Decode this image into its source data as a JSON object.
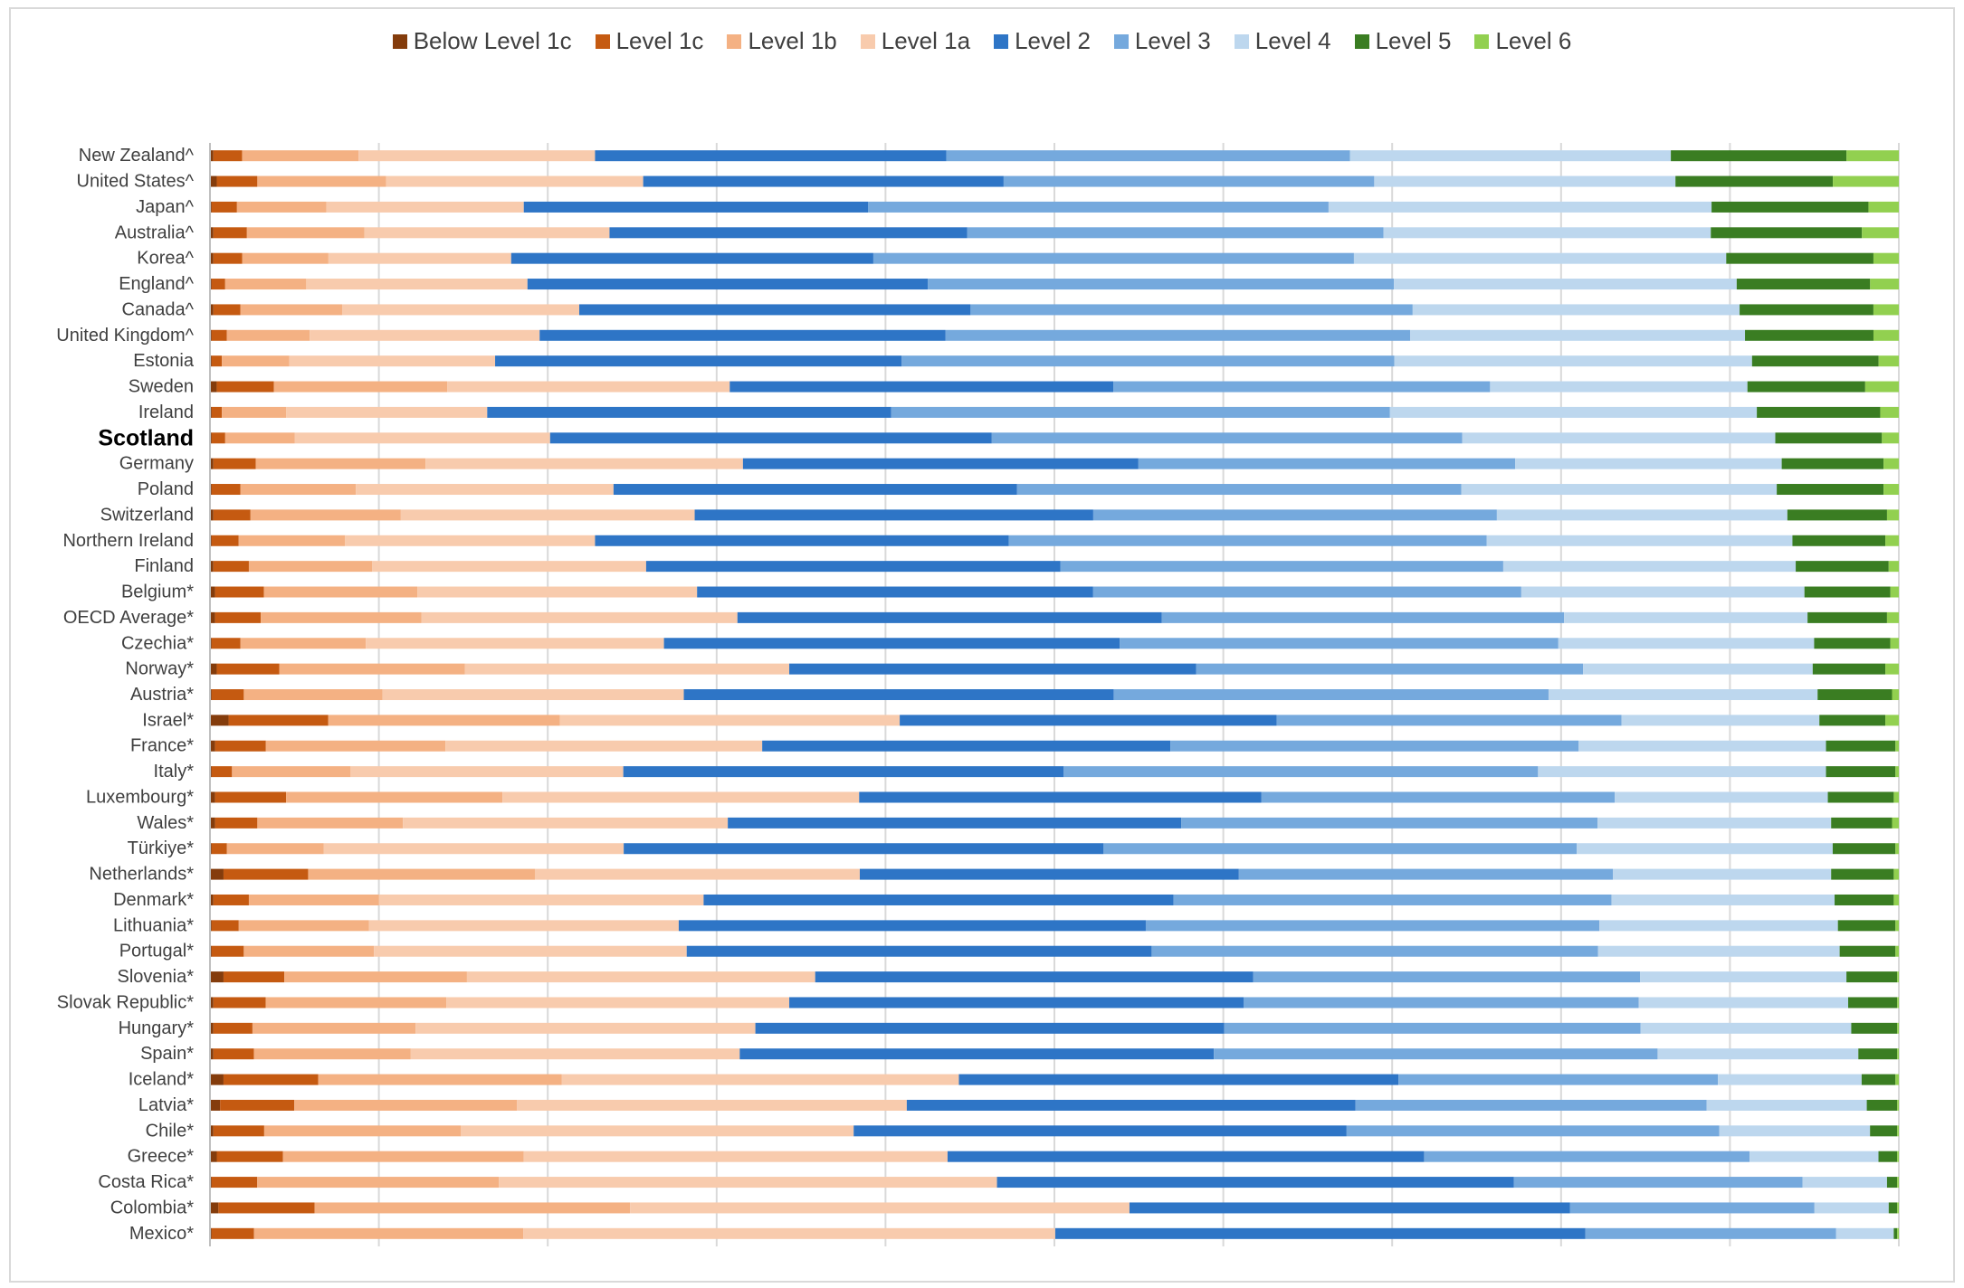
{
  "chart_data": {
    "type": "bar",
    "orientation": "horizontal",
    "stacked": true,
    "percent_stacked": true,
    "title": "",
    "xlabel": "",
    "ylabel": "",
    "xlim": [
      0,
      100
    ],
    "grid": true,
    "legend_placement": "top",
    "categories": [
      "New Zealand^",
      "United States^",
      "Japan^",
      "Australia^",
      "Korea^",
      "England^",
      "Canada^",
      "United Kingdom^",
      "Estonia",
      "Sweden",
      "Ireland",
      "Scotland",
      "Germany",
      "Poland",
      "Switzerland",
      "Northern Ireland",
      "Finland",
      "Belgium*",
      "OECD Average*",
      "Czechia*",
      "Norway*",
      "Austria*",
      "Israel*",
      "France*",
      "Italy*",
      "Luxembourg*",
      "Wales*",
      "Türkiye*",
      "Netherlands*",
      "Denmark*",
      "Lithuania*",
      "Portugal*",
      "Slovenia*",
      "Slovak Republic*",
      "Hungary*",
      "Spain*",
      "Iceland*",
      "Latvia*",
      "Chile*",
      "Greece*",
      "Costa Rica*",
      "Colombia*",
      "Mexico*"
    ],
    "highlight_category": "Scotland",
    "series": [
      {
        "name": "Below Level 1c",
        "color": "#843c0c",
        "values": [
          0.2,
          0.4,
          0.1,
          0.2,
          0.2,
          0.1,
          0.2,
          0.1,
          0.1,
          0.4,
          0.1,
          0.1,
          0.2,
          0.1,
          0.2,
          0.1,
          0.2,
          0.3,
          0.3,
          0.1,
          0.4,
          0.1,
          1.1,
          0.3,
          0.1,
          0.3,
          0.3,
          0.1,
          0.8,
          0.2,
          0.1,
          0.1,
          0.8,
          0.2,
          0.2,
          0.2,
          0.8,
          0.6,
          0.2,
          0.4,
          0.1,
          0.5,
          0.1
        ]
      },
      {
        "name": "Level 1c",
        "color": "#c55a11",
        "values": [
          1.7,
          2.4,
          1.5,
          2.0,
          1.7,
          0.8,
          1.6,
          0.9,
          0.6,
          3.4,
          0.6,
          0.8,
          2.5,
          1.7,
          2.2,
          1.6,
          2.1,
          2.9,
          2.7,
          1.7,
          3.7,
          1.9,
          5.9,
          3.0,
          1.2,
          4.2,
          2.5,
          0.9,
          5.0,
          2.1,
          1.6,
          1.9,
          3.6,
          3.1,
          2.3,
          2.4,
          5.6,
          4.4,
          3.0,
          3.9,
          2.7,
          5.7,
          2.5
        ]
      },
      {
        "name": "Level 1b",
        "color": "#f4b183",
        "values": [
          6.9,
          7.6,
          5.3,
          7.0,
          5.1,
          4.8,
          6.0,
          4.9,
          4.0,
          10.3,
          3.8,
          4.1,
          10.0,
          6.8,
          8.9,
          6.3,
          7.3,
          9.1,
          9.5,
          7.4,
          11.0,
          8.2,
          13.7,
          10.6,
          7.0,
          12.8,
          8.6,
          5.7,
          13.4,
          7.7,
          7.7,
          7.7,
          10.8,
          10.7,
          9.6,
          9.3,
          14.4,
          13.2,
          11.6,
          14.2,
          14.3,
          18.7,
          15.9
        ]
      },
      {
        "name": "Level 1a",
        "color": "#f8cbad",
        "values": [
          14.0,
          15.2,
          11.7,
          14.6,
          10.8,
          13.1,
          14.0,
          13.6,
          12.2,
          16.8,
          11.9,
          15.1,
          18.7,
          15.2,
          17.4,
          14.8,
          16.2,
          16.6,
          18.7,
          17.6,
          19.2,
          17.8,
          20.1,
          18.7,
          16.1,
          21.1,
          19.2,
          17.7,
          19.2,
          19.2,
          18.3,
          18.5,
          20.6,
          20.3,
          20.0,
          19.5,
          23.5,
          23.1,
          23.2,
          25.0,
          29.5,
          29.6,
          31.4
        ]
      },
      {
        "name": "Level 2",
        "color": "#2e75c6",
        "values": [
          20.8,
          21.3,
          20.4,
          21.3,
          21.4,
          23.7,
          23.1,
          24.0,
          24.1,
          22.8,
          23.9,
          26.1,
          23.3,
          23.8,
          23.6,
          24.5,
          24.5,
          23.5,
          25.1,
          26.9,
          24.1,
          25.4,
          22.3,
          24.1,
          26.0,
          23.8,
          26.8,
          28.3,
          22.4,
          27.8,
          27.6,
          27.5,
          25.9,
          26.9,
          27.6,
          28.1,
          26.0,
          26.6,
          29.1,
          28.1,
          30.6,
          26.1,
          31.3
        ]
      },
      {
        "name": "Level 3",
        "color": "#75a9dd",
        "values": [
          23.9,
          21.9,
          27.3,
          24.8,
          28.4,
          27.6,
          26.1,
          27.5,
          29.2,
          22.4,
          29.5,
          27.8,
          22.2,
          26.2,
          23.9,
          28.3,
          26.2,
          25.4,
          23.8,
          25.9,
          22.9,
          25.7,
          20.4,
          24.1,
          28.0,
          20.9,
          24.6,
          27.9,
          22.1,
          25.9,
          26.8,
          26.4,
          22.9,
          23.4,
          24.5,
          26.3,
          18.9,
          20.8,
          22.0,
          19.2,
          17.1,
          14.5,
          14.8
        ]
      },
      {
        "name": "Level 4",
        "color": "#bdd7ee",
        "values": [
          19.0,
          17.8,
          22.7,
          19.5,
          22.0,
          20.3,
          19.3,
          19.8,
          21.2,
          15.3,
          21.7,
          18.5,
          15.7,
          18.6,
          17.2,
          18.1,
          17.3,
          16.8,
          14.4,
          15.1,
          13.6,
          15.9,
          11.7,
          14.6,
          17.0,
          12.6,
          13.8,
          15.1,
          12.9,
          13.2,
          14.1,
          14.3,
          12.2,
          12.4,
          12.4,
          11.9,
          8.5,
          9.5,
          8.9,
          7.6,
          5.0,
          4.4,
          3.4
        ]
      },
      {
        "name": "Level 5",
        "color": "#3a7d22",
        "values": [
          10.4,
          9.3,
          9.3,
          9.0,
          8.7,
          7.9,
          7.9,
          7.6,
          7.5,
          7.0,
          7.3,
          6.3,
          6.0,
          6.3,
          5.9,
          5.5,
          5.5,
          5.1,
          4.7,
          4.5,
          4.3,
          4.4,
          3.9,
          4.1,
          4.1,
          3.9,
          3.6,
          3.7,
          3.7,
          3.5,
          3.4,
          3.3,
          3.0,
          2.9,
          2.7,
          2.3,
          2.0,
          1.8,
          1.6,
          1.1,
          0.6,
          0.5,
          0.2
        ]
      },
      {
        "name": "Level 6",
        "color": "#92d050",
        "values": [
          3.1,
          3.9,
          1.8,
          2.2,
          1.5,
          1.7,
          1.5,
          1.5,
          1.2,
          2.0,
          1.1,
          1.0,
          0.9,
          0.9,
          0.7,
          0.8,
          0.6,
          0.5,
          0.7,
          0.5,
          0.8,
          0.4,
          0.8,
          0.2,
          0.2,
          0.3,
          0.4,
          0.2,
          0.3,
          0.3,
          0.2,
          0.2,
          0.1,
          0.1,
          0.1,
          0.1,
          0.2,
          0.1,
          0.1,
          0.1,
          0.1,
          0.1,
          0.1
        ]
      }
    ]
  }
}
